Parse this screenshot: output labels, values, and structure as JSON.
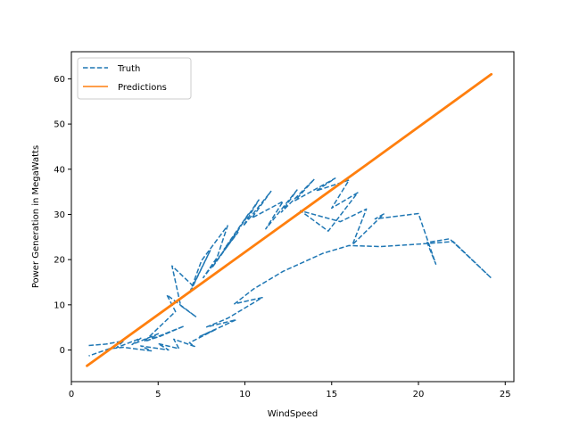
{
  "chart_data": {
    "type": "line",
    "title": "",
    "xlabel": "WindSpeed",
    "ylabel": "Power Generation in MegaWatts",
    "xlim": [
      0.0,
      25.5
    ],
    "ylim": [
      -7,
      66
    ],
    "xticks": [
      0,
      5,
      10,
      15,
      20,
      25
    ],
    "yticks": [
      0,
      10,
      20,
      30,
      40,
      50,
      60
    ],
    "xtick_labels": [
      "0",
      "5",
      "10",
      "15",
      "20",
      "25"
    ],
    "ytick_labels": [
      "0",
      "10",
      "20",
      "30",
      "40",
      "50",
      "60"
    ],
    "grid": false,
    "legend_position": "top-left",
    "series": [
      {
        "name": "Truth",
        "style": "dashed",
        "color": "#1f77b4",
        "x": [
          1.0,
          2.0,
          3.0,
          2.6,
          4.0,
          3.5,
          5.0,
          4.4,
          6.5,
          5.1,
          4.2,
          6.0,
          5.5,
          7.2,
          6.3,
          5.8,
          7.0,
          8.0,
          6.8,
          7.5,
          9.0,
          8.4,
          7.6,
          9.6,
          8.8,
          10.2,
          9.3,
          8.1,
          10.8,
          9.9,
          11.5,
          10.4,
          12.2,
          11.2,
          13.0,
          12.1,
          14.0,
          12.9,
          15.2,
          14.1,
          16.0,
          15.0,
          16.5,
          14.8,
          13.2,
          15.5,
          17.0,
          16.2,
          18.0,
          17.5,
          20.0,
          21.0,
          20.5,
          21.8,
          24.2,
          22.0,
          20.3,
          17.8,
          16.0,
          14.5,
          12.2,
          10.5,
          9.4,
          11.0,
          9.0,
          7.8,
          9.5,
          7.4,
          8.3,
          6.8,
          7.1,
          5.9,
          6.2,
          5.0,
          5.6,
          4.0,
          4.6,
          3.4,
          3.0,
          2.2,
          1.0
        ],
        "y": [
          1.0,
          1.3,
          2.0,
          0.5,
          2.6,
          1.2,
          3.6,
          2.1,
          5.3,
          3.0,
          1.9,
          8.5,
          12.2,
          7.3,
          9.8,
          18.6,
          14.2,
          22.0,
          12.5,
          19.8,
          27.5,
          20.5,
          16.0,
          26.0,
          22.3,
          30.1,
          24.6,
          18.2,
          33.2,
          27.4,
          35.1,
          29.2,
          32.9,
          26.8,
          35.4,
          30.5,
          37.8,
          33.1,
          38.0,
          35.2,
          37.6,
          31.4,
          34.8,
          26.3,
          30.8,
          28.4,
          31.2,
          23.3,
          30.1,
          29.0,
          30.2,
          19.0,
          23.8,
          24.6,
          15.9,
          24.0,
          23.5,
          22.9,
          23.1,
          21.4,
          17.4,
          13.5,
          10.2,
          11.6,
          7.0,
          5.1,
          6.7,
          3.0,
          4.5,
          1.6,
          0.8,
          2.4,
          0.3,
          1.4,
          0.0,
          0.9,
          -0.2,
          0.4,
          0.6,
          0.3,
          -1.3
        ]
      },
      {
        "name": "Predictions",
        "style": "solid",
        "color": "#ff7f0e",
        "x": [
          0.9,
          17.0,
          24.2
        ],
        "y": [
          -3.5,
          41.0,
          61.0
        ]
      }
    ]
  }
}
